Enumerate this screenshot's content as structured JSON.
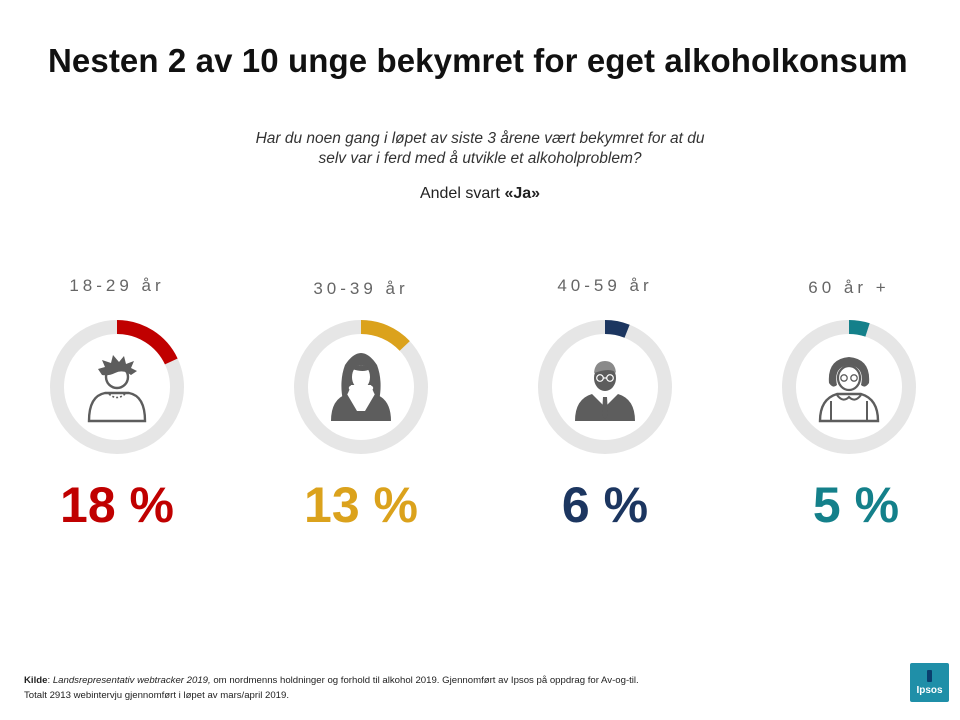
{
  "title": "Nesten 2 av 10 unge bekymret for eget alkoholkonsum",
  "question_line1": "Har du noen gang i løpet av siste 3 årene vært bekymret for at du",
  "question_line2": "selv var i ferd med å utvikle et alkoholproblem?",
  "answer_prefix": "Andel svart ",
  "answer_value": "«Ja»",
  "chart_data": {
    "type": "pie",
    "categories": [
      "18-29 år",
      "30-39 år",
      "40-59 år",
      "60 år +"
    ],
    "values": [
      18,
      13,
      6,
      5
    ],
    "value_labels": [
      "18 %",
      "13 %",
      "6 %",
      "5 %"
    ],
    "colors": [
      "#c00000",
      "#dba21c",
      "#1c3660",
      "#14808a"
    ],
    "track_color": "#e6e6e6",
    "icons": [
      "young-man-icon",
      "woman-icon",
      "businessman-icon",
      "elderly-woman-icon"
    ]
  },
  "footer": {
    "source_label": "Kilde",
    "source_title": "Landsrepresentativ webtracker 2019,",
    "source_rest": " om nordmenns holdninger og forhold til alkohol 2019. Gjennomført av Ipsos på oppdrag for Av-og-til.",
    "line2": "Totalt 2913 webintervju gjennomført i løpet av mars/april 2019."
  },
  "logo_text": "Ipsos"
}
